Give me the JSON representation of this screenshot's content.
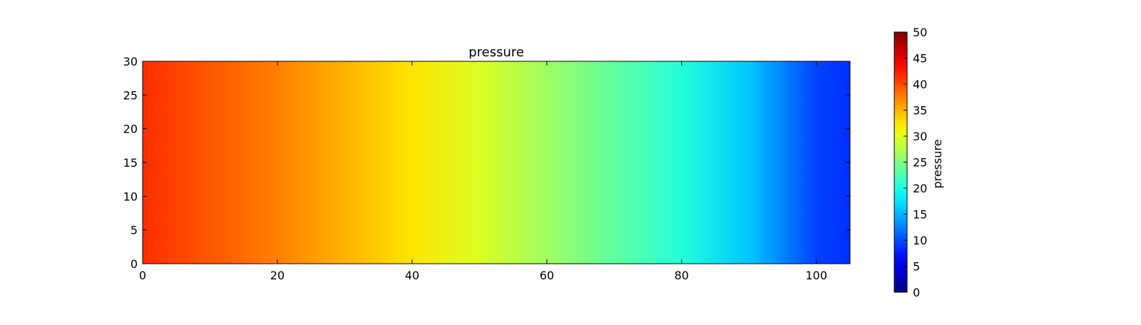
{
  "chart_data": {
    "type": "heatmap",
    "title": "pressure",
    "xlabel": "",
    "ylabel": "",
    "xlim": [
      0,
      105
    ],
    "ylim": [
      0,
      30
    ],
    "x_ticks": [
      0,
      20,
      40,
      60,
      80,
      100
    ],
    "y_ticks": [
      0,
      5,
      10,
      15,
      20,
      25,
      30
    ],
    "colormap": "jet",
    "color_range": [
      0,
      50
    ],
    "colorbar": {
      "label": "pressure",
      "ticks": [
        0,
        5,
        10,
        15,
        20,
        25,
        30,
        35,
        40,
        45,
        50
      ]
    },
    "grid": false,
    "profile": {
      "description_axis": "x",
      "x": [
        0,
        10,
        20,
        30,
        40,
        50,
        60,
        70,
        80,
        90,
        100,
        105
      ],
      "values": [
        41.5,
        39.5,
        37.5,
        35.0,
        32.5,
        29.5,
        26.5,
        23.5,
        20.5,
        16.0,
        9.5,
        8.5
      ]
    }
  }
}
